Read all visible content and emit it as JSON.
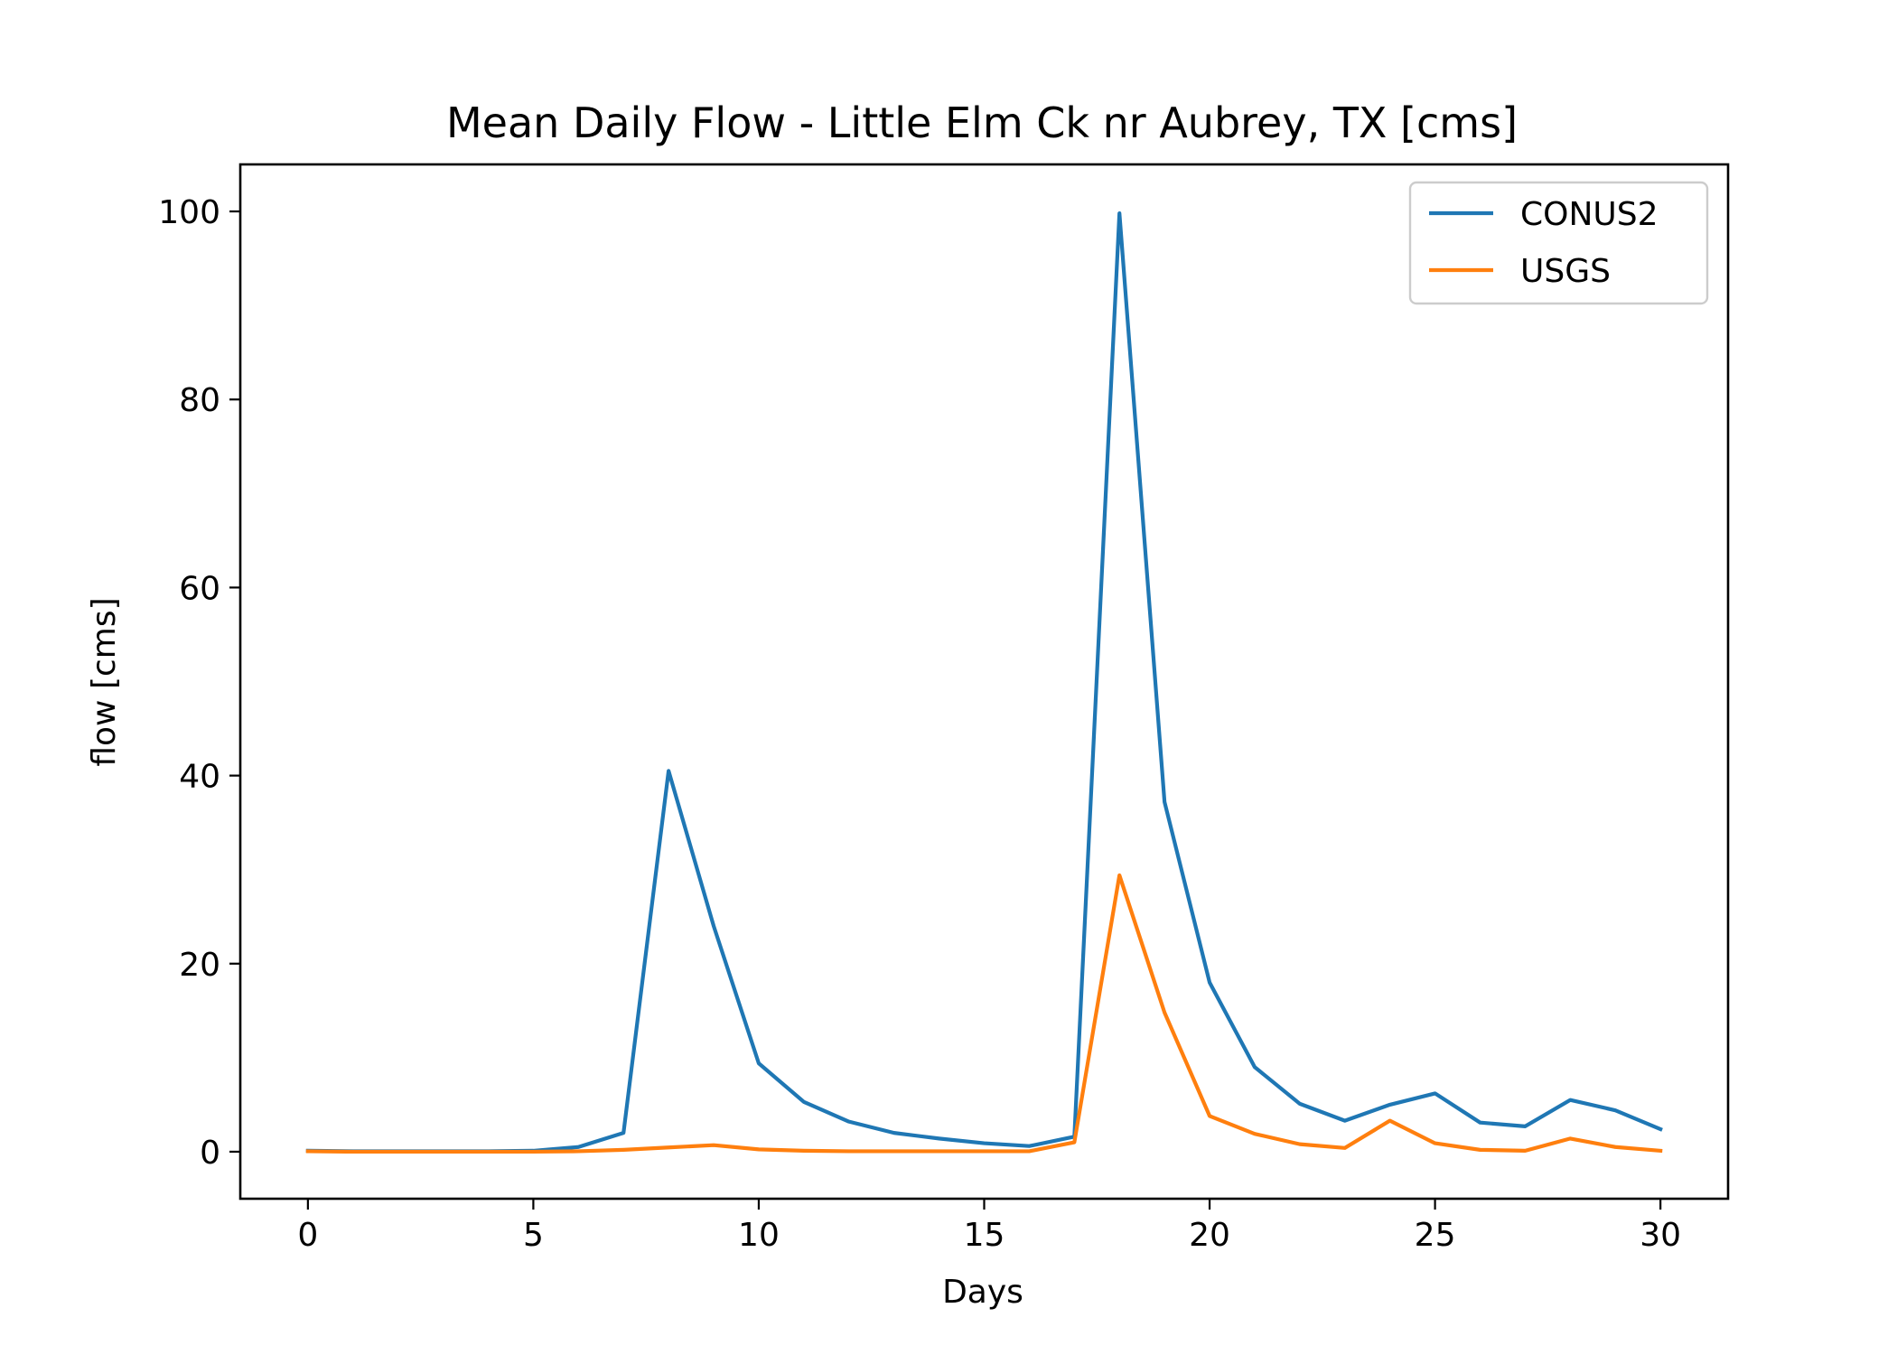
{
  "chart_data": {
    "type": "line",
    "title": "Mean Daily Flow - Little Elm Ck nr Aubrey, TX [cms]",
    "xlabel": "Days",
    "ylabel": "flow [cms]",
    "xlim": [
      -1.5,
      31.5
    ],
    "ylim": [
      -5,
      105
    ],
    "xticks": [
      0,
      5,
      10,
      15,
      20,
      25,
      30
    ],
    "yticks": [
      0,
      20,
      40,
      60,
      80,
      100
    ],
    "xtick_labels": [
      "0",
      "5",
      "10",
      "15",
      "20",
      "25",
      "30"
    ],
    "ytick_labels": [
      "0",
      "20",
      "40",
      "60",
      "80",
      "100"
    ],
    "grid": false,
    "legend_position": "upper right",
    "x": [
      0,
      1,
      2,
      3,
      4,
      5,
      6,
      7,
      8,
      9,
      10,
      11,
      12,
      13,
      14,
      15,
      16,
      17,
      18,
      19,
      20,
      21,
      22,
      23,
      24,
      25,
      26,
      27,
      28,
      29,
      30
    ],
    "series": [
      {
        "name": "CONUS2",
        "color": "#1f77b4",
        "values": [
          0.1,
          0.05,
          0.05,
          0.05,
          0.05,
          0.1,
          0.5,
          2.0,
          40.5,
          24.0,
          9.4,
          5.3,
          3.2,
          2.0,
          1.4,
          0.9,
          0.6,
          1.6,
          99.8,
          37.2,
          18.0,
          9.0,
          5.1,
          3.3,
          5.0,
          6.2,
          3.1,
          2.7,
          5.5,
          4.4,
          2.4
        ]
      },
      {
        "name": "USGS",
        "color": "#ff7f0e",
        "values": [
          0.05,
          0.0,
          0.0,
          0.0,
          0.0,
          0.0,
          0.05,
          0.2,
          0.45,
          0.7,
          0.25,
          0.1,
          0.05,
          0.05,
          0.05,
          0.05,
          0.05,
          1.0,
          29.4,
          14.8,
          3.8,
          1.9,
          0.8,
          0.4,
          3.3,
          0.9,
          0.2,
          0.1,
          1.4,
          0.5,
          0.1
        ]
      }
    ]
  }
}
